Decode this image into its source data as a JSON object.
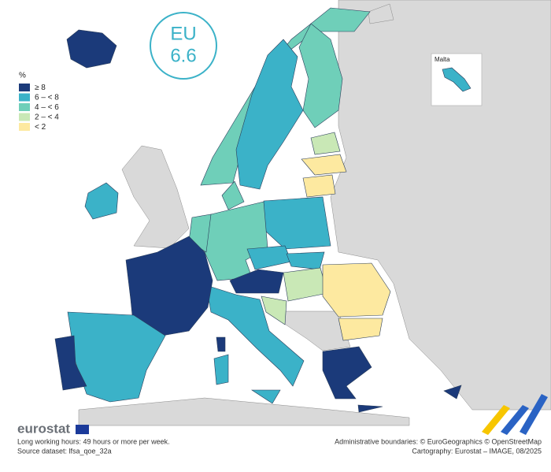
{
  "map": {
    "eu_label": "EU",
    "eu_value": 6.6,
    "legend": {
      "title": "%",
      "items": [
        {
          "label": "≥ 8",
          "color": "#1b3a7a"
        },
        {
          "label": "6 – < 8",
          "color": "#3bb2c8"
        },
        {
          "label": "4 – < 6",
          "color": "#6fcfb9"
        },
        {
          "label": "2 – < 4",
          "color": "#c9e8b6"
        },
        {
          "label": "< 2",
          "color": "#fde9a0"
        }
      ]
    },
    "inset_label": "Malta"
  },
  "footer": {
    "logo": "eurostat",
    "description": "Long working hours: 49 hours or more per week.",
    "source": "Source dataset: lfsa_qoe_32a",
    "boundaries": "Administrative boundaries: © EuroGeographics © OpenStreetMap",
    "cartography": "Cartography: Eurostat – IMAGE, 08/2025"
  }
}
